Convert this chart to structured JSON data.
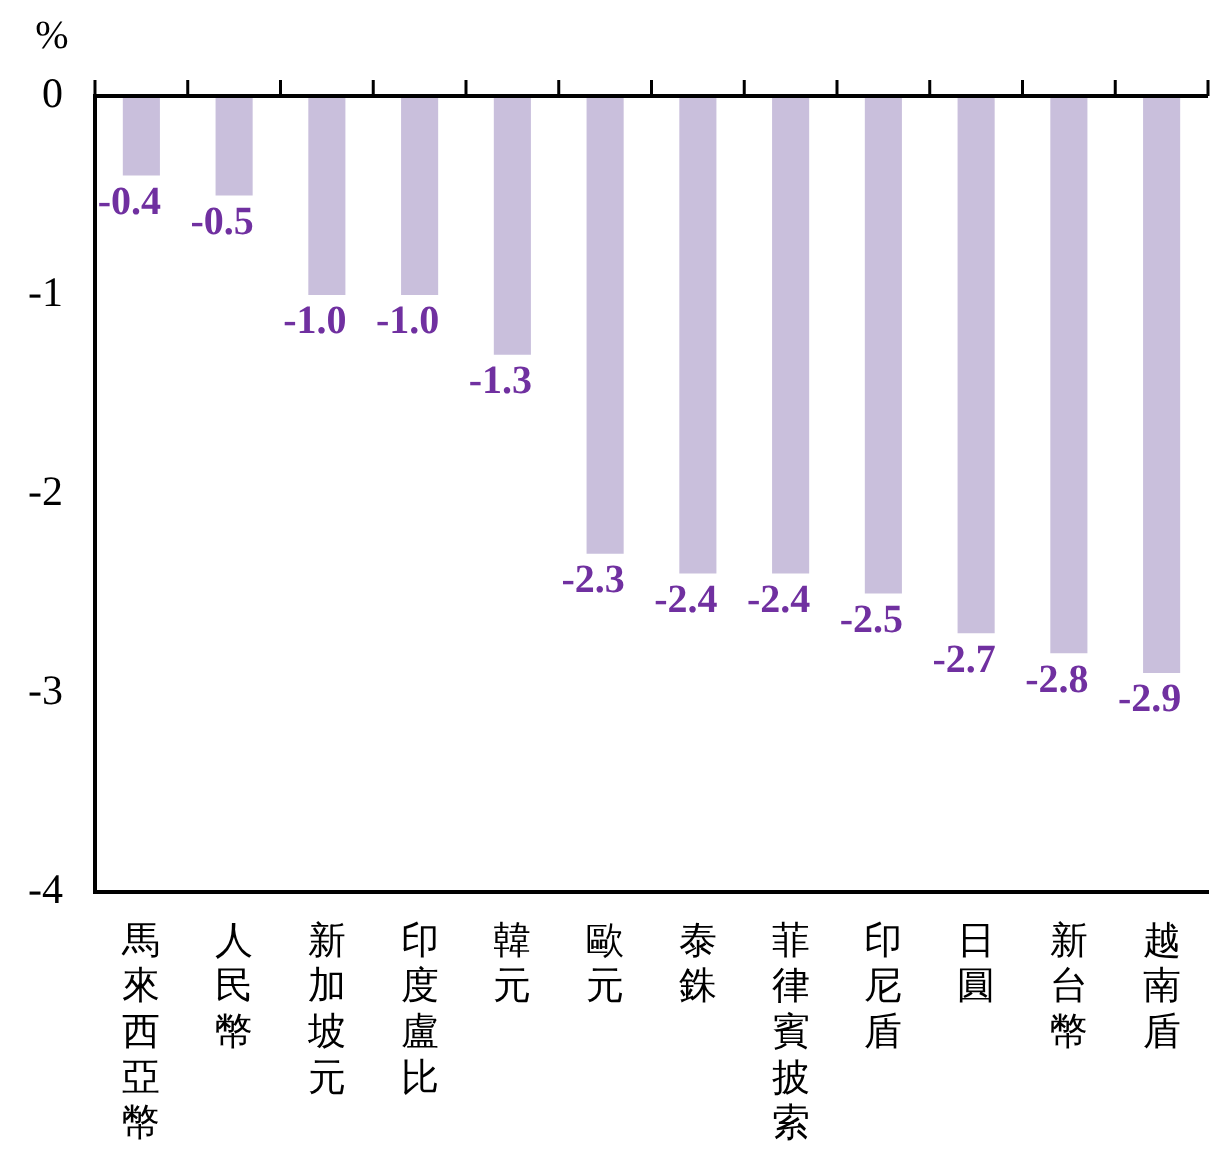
{
  "chart_data": {
    "type": "bar",
    "ylabel": "%",
    "categories": [
      "馬來西亞幣",
      "人民幣",
      "新加坡元",
      "印度盧比",
      "韓元",
      "歐元",
      "泰銖",
      "菲律賓披索",
      "印尼盾",
      "日圓",
      "新台幣",
      "越南盾"
    ],
    "values": [
      -0.4,
      -0.5,
      -1.0,
      -1.0,
      -1.3,
      -2.3,
      -2.4,
      -2.4,
      -2.5,
      -2.7,
      -2.8,
      -2.9
    ],
    "color": "#c9bfdc",
    "ylim": [
      -4,
      0
    ],
    "yticks": [
      -4,
      -3,
      -2,
      -1,
      0
    ],
    "value_labels": [
      "-0.4",
      "-0.5",
      "-1.0",
      "-1.0",
      "-1.3",
      "-2.3",
      "-2.4",
      "-2.4",
      "-2.5",
      "-2.7",
      "-2.8",
      "-2.9"
    ],
    "grid": false,
    "legend": false
  }
}
